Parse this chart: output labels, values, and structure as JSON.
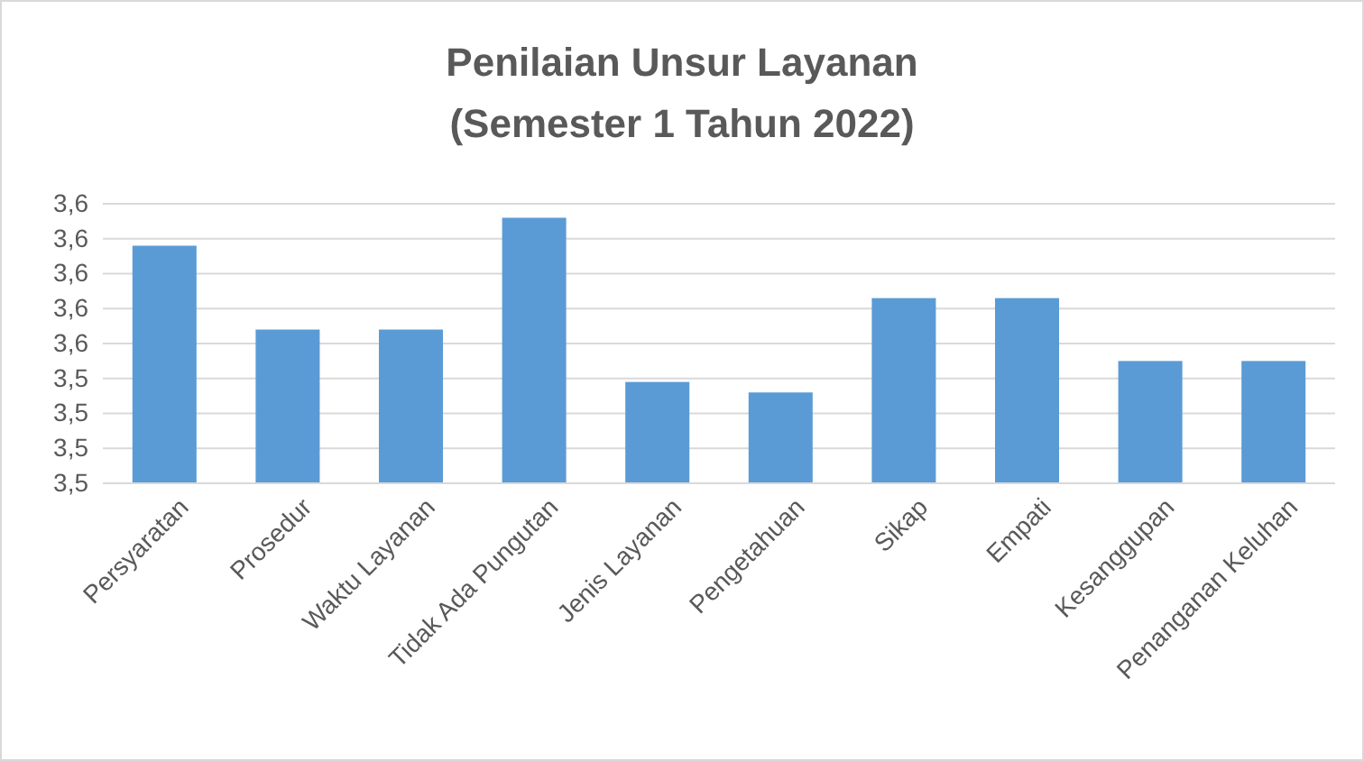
{
  "chart_data": {
    "type": "bar",
    "title": "Penilaian Unsur Layanan\n(Semester 1 Tahun 2022)",
    "categories": [
      "Persyaratan",
      "Prosedur",
      "Waktu Layanan",
      "Tidak Ada Pungutan",
      "Jenis Layanan",
      "Pengetahuan",
      "Sikap",
      "Empati",
      "Kesanggupan",
      "Penanganan Keluhan"
    ],
    "values": [
      3.578,
      3.554,
      3.554,
      3.586,
      3.539,
      3.536,
      3.563,
      3.563,
      3.545,
      3.545
    ],
    "color": "#5b9bd5",
    "ylim": [
      3.51,
      3.59
    ],
    "yticks": [
      {
        "value": 3.51,
        "label": "3,5"
      },
      {
        "value": 3.52,
        "label": "3,5"
      },
      {
        "value": 3.53,
        "label": "3,5"
      },
      {
        "value": 3.54,
        "label": "3,5"
      },
      {
        "value": 3.55,
        "label": "3,6"
      },
      {
        "value": 3.56,
        "label": "3,6"
      },
      {
        "value": 3.57,
        "label": "3,6"
      },
      {
        "value": 3.58,
        "label": "3,6"
      },
      {
        "value": 3.59,
        "label": "3,6"
      }
    ],
    "grid": true
  }
}
